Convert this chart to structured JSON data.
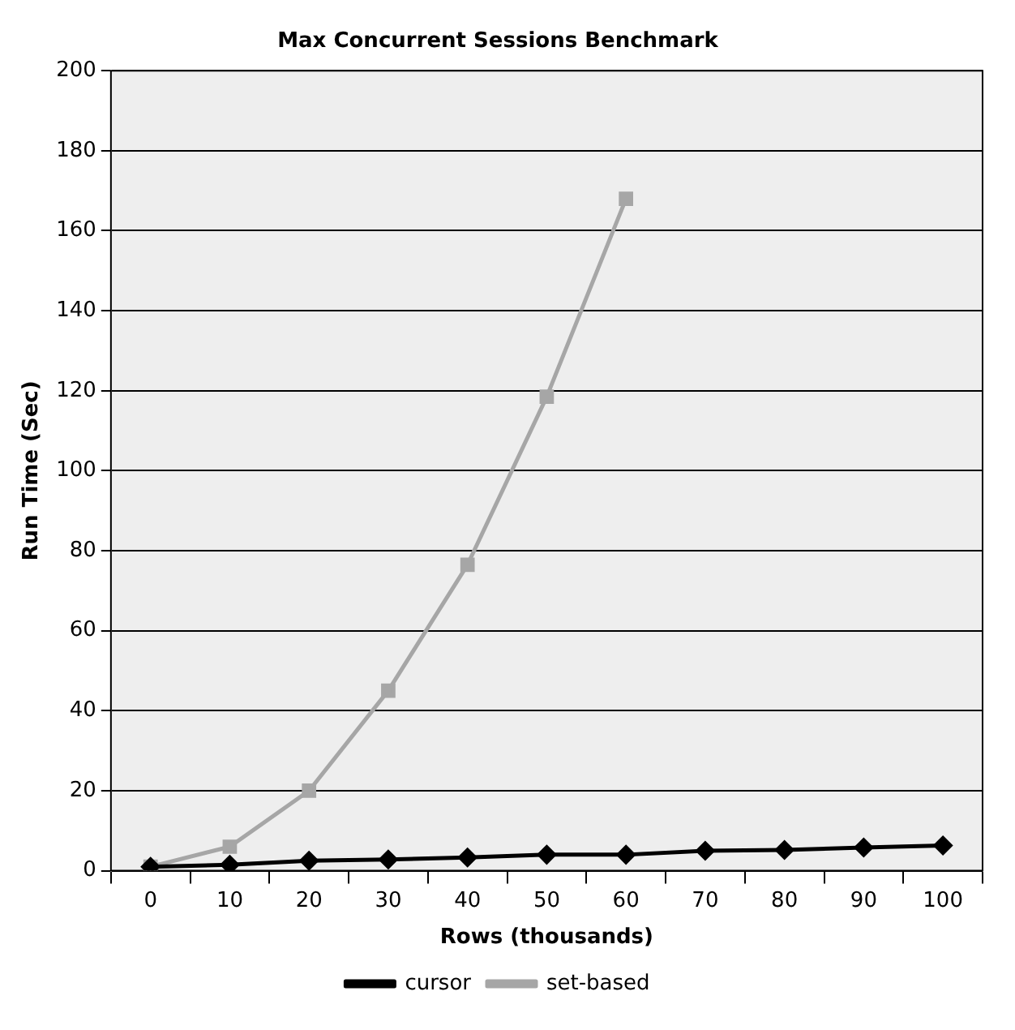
{
  "chart_data": {
    "type": "line",
    "title": "Max Concurrent Sessions Benchmark",
    "xlabel": "Rows (thousands)",
    "ylabel": "Run Time (Sec)",
    "categories": [
      "0",
      "10",
      "20",
      "30",
      "40",
      "50",
      "60",
      "70",
      "80",
      "90",
      "100"
    ],
    "series": [
      {
        "name": "set-based",
        "color": "#a6a6a6",
        "marker": "square",
        "values": [
          1,
          6,
          20,
          45,
          76.5,
          118.5,
          168,
          null,
          null,
          null,
          null
        ]
      },
      {
        "name": "cursor",
        "color": "#000000",
        "marker": "diamond",
        "values": [
          1,
          1.5,
          2.5,
          2.8,
          3.3,
          4,
          4,
          5,
          5.2,
          5.8,
          6.3
        ]
      }
    ],
    "ylim": [
      0,
      200
    ],
    "yticks": [
      0,
      20,
      40,
      60,
      80,
      100,
      120,
      140,
      160,
      180,
      200
    ],
    "grid": "y",
    "legend": "bottom",
    "line_style": "solid"
  }
}
